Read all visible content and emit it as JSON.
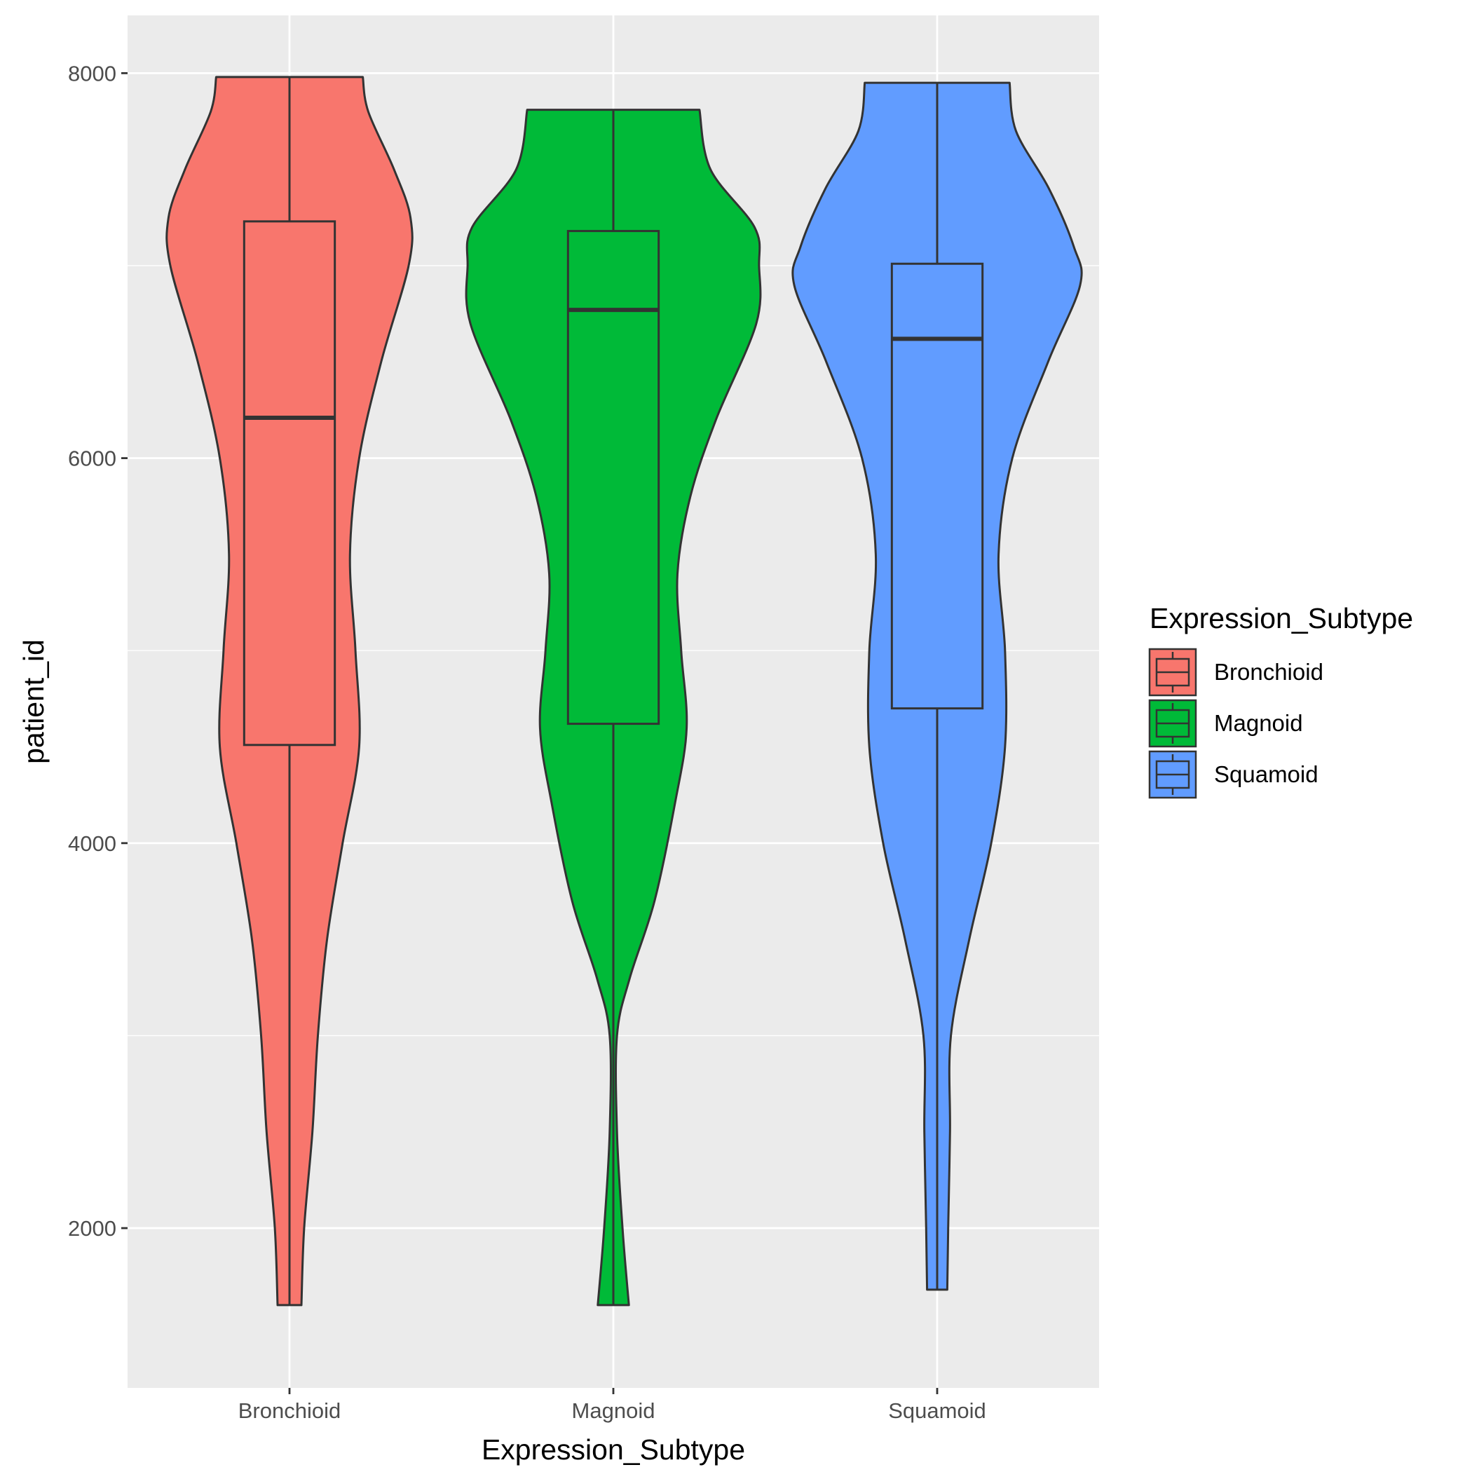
{
  "chart_data": {
    "type": "violin",
    "xlabel": "Expression_Subtype",
    "ylabel": "patient_id",
    "ylim": [
      1170,
      8300
    ],
    "y_ticks": [
      2000,
      4000,
      6000,
      8000
    ],
    "y_tick_labels": [
      "2000",
      "4000",
      "6000",
      "8000"
    ],
    "categories": [
      "Bronchioid",
      "Magnoid",
      "Squamoid"
    ],
    "grid": true,
    "legend": {
      "title": "Expression_Subtype",
      "position": "right",
      "entries": [
        "Bronchioid",
        "Magnoid",
        "Squamoid"
      ]
    },
    "series": [
      {
        "name": "Bronchioid",
        "color": "#F8766D",
        "min": 1600,
        "q1": 4510,
        "median": 6210,
        "q3": 7230,
        "max": 7980,
        "density": [
          [
            1600,
            0.13
          ],
          [
            2000,
            0.16
          ],
          [
            2500,
            0.25
          ],
          [
            3000,
            0.31
          ],
          [
            3500,
            0.41
          ],
          [
            4000,
            0.58
          ],
          [
            4500,
            0.76
          ],
          [
            5000,
            0.72
          ],
          [
            5500,
            0.66
          ],
          [
            6000,
            0.76
          ],
          [
            6500,
            1.0
          ],
          [
            7000,
            1.3
          ],
          [
            7250,
            1.32
          ],
          [
            7500,
            1.14
          ],
          [
            7800,
            0.86
          ],
          [
            7980,
            0.8
          ]
        ]
      },
      {
        "name": "Magnoid",
        "color": "#00BA38",
        "min": 1600,
        "q1": 4620,
        "median": 6770,
        "q3": 7180,
        "max": 7810,
        "density": [
          [
            1600,
            0.17
          ],
          [
            2000,
            0.1
          ],
          [
            2500,
            0.04
          ],
          [
            3000,
            0.04
          ],
          [
            3300,
            0.18
          ],
          [
            3700,
            0.45
          ],
          [
            4200,
            0.67
          ],
          [
            4600,
            0.8
          ],
          [
            5000,
            0.74
          ],
          [
            5400,
            0.7
          ],
          [
            5800,
            0.84
          ],
          [
            6200,
            1.12
          ],
          [
            6700,
            1.56
          ],
          [
            7000,
            1.59
          ],
          [
            7200,
            1.54
          ],
          [
            7500,
            1.06
          ],
          [
            7810,
            0.94
          ]
        ]
      },
      {
        "name": "Squamoid",
        "color": "#619CFF",
        "min": 1680,
        "q1": 4700,
        "median": 6620,
        "q3": 7010,
        "max": 7950,
        "density": [
          [
            1680,
            0.11
          ],
          [
            2000,
            0.12
          ],
          [
            2500,
            0.14
          ],
          [
            3000,
            0.15
          ],
          [
            3500,
            0.35
          ],
          [
            4000,
            0.59
          ],
          [
            4500,
            0.74
          ],
          [
            5000,
            0.74
          ],
          [
            5500,
            0.67
          ],
          [
            6000,
            0.82
          ],
          [
            6500,
            1.21
          ],
          [
            6900,
            1.56
          ],
          [
            7100,
            1.49
          ],
          [
            7400,
            1.22
          ],
          [
            7700,
            0.86
          ],
          [
            7950,
            0.79
          ]
        ]
      }
    ]
  }
}
